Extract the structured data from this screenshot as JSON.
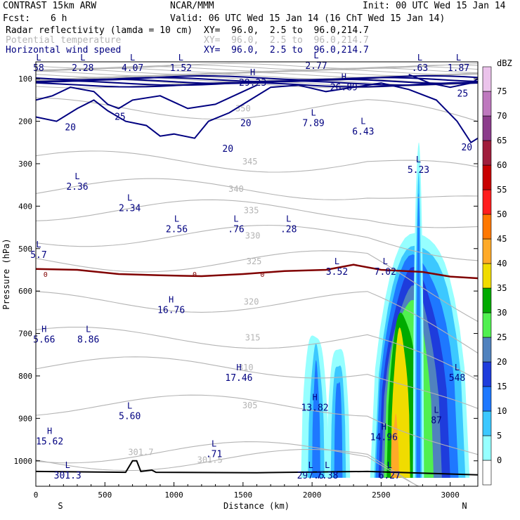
{
  "header": {
    "model": "CONTRAST 15km ARW",
    "center": "NCAR/MMM",
    "init": "Init: 00 UTC Wed 15 Jan 14",
    "fcst_label": "Fcst:",
    "fcst_value": "6 h",
    "valid": "Valid: 06 UTC Wed 15 Jan 14 (16 ChT Wed 15 Jan 14)"
  },
  "fields": [
    {
      "name": "Radar reflectivity (lamda = 10 cm)",
      "xy": "XY=  96.0,  2.5 to  96.0,214.7",
      "color": "#000000"
    },
    {
      "name": "Potential temperature",
      "xy": "XY=  96.0,  2.5 to  96.0,214.7",
      "color": "#b4b4b4"
    },
    {
      "name": "Horizontal wind speed",
      "xy": "XY=  96.0,  2.5 to  96.0,214.7",
      "color": "#000080"
    }
  ],
  "chart_data": {
    "type": "cross-section",
    "xlabel": "Distance (km)",
    "ylabel": "Pressure (hPa)",
    "xlim": [
      0,
      3200
    ],
    "ylim": [
      1060,
      60
    ],
    "x_ticks": [
      "0",
      "500",
      "1000",
      "1500",
      "2000",
      "2500",
      "3000"
    ],
    "x_tick_values": [
      0,
      500,
      1000,
      1500,
      2000,
      2500,
      3000
    ],
    "y_ticks": [
      "100",
      "200",
      "300",
      "400",
      "500",
      "600",
      "700",
      "800",
      "900",
      "1000"
    ],
    "y_tick_values": [
      100,
      200,
      300,
      400,
      500,
      600,
      700,
      800,
      900,
      1000
    ],
    "left_end_label": "S",
    "right_end_label": "N",
    "colorbar": {
      "unit": "dBZ",
      "levels": [
        "0",
        "5",
        "10",
        "15",
        "20",
        "25",
        "30",
        "35",
        "40",
        "45",
        "50",
        "55",
        "60",
        "65",
        "70",
        "75"
      ],
      "colors": [
        "#ffffff",
        "#96ffff",
        "#3cc8ff",
        "#1e78ff",
        "#1e3cdc",
        "#5082be",
        "#50f050",
        "#00aa00",
        "#f0dc00",
        "#ffaa28",
        "#ff7800",
        "#ff1e1e",
        "#c80000",
        "#a01e3c",
        "#8c3c8c",
        "#be78be",
        "#ebc3eb"
      ]
    },
    "theta_contours": [
      {
        "value": 301.5,
        "label": "301.5",
        "x": 1260,
        "p": 998
      },
      {
        "value": 301.7,
        "label": "301.7",
        "x": 760,
        "p": 980
      },
      {
        "value": 305,
        "label": "305",
        "x": 1550,
        "p": 870
      },
      {
        "value": 310,
        "label": "310",
        "x": 1520,
        "p": 780
      },
      {
        "value": 315,
        "label": "315",
        "x": 1570,
        "p": 710
      },
      {
        "value": 320,
        "label": "320",
        "x": 1560,
        "p": 625
      },
      {
        "value": 325,
        "label": "325",
        "x": 1580,
        "p": 530
      },
      {
        "value": 330,
        "label": "330",
        "x": 1570,
        "p": 470
      },
      {
        "value": 335,
        "label": "335",
        "x": 1560,
        "p": 410
      },
      {
        "value": 340,
        "label": "340",
        "x": 1450,
        "p": 360
      },
      {
        "value": 345,
        "label": "345",
        "x": 1550,
        "p": 295
      },
      {
        "value": 350,
        "label": "350",
        "x": 1500,
        "p": 170
      }
    ],
    "zero_isotherm": {
      "label": "0",
      "points": [
        [
          0,
          548
        ],
        [
          300,
          550
        ],
        [
          600,
          560
        ],
        [
          900,
          563
        ],
        [
          1200,
          565
        ],
        [
          1500,
          560
        ],
        [
          1800,
          553
        ],
        [
          2100,
          550
        ],
        [
          2300,
          538
        ],
        [
          2500,
          550
        ],
        [
          2800,
          555
        ],
        [
          3000,
          566
        ],
        [
          3200,
          570
        ]
      ]
    },
    "wind_contours": [
      {
        "value": 20,
        "label": "20"
      },
      {
        "value": 25,
        "label": "25"
      }
    ],
    "extrema": [
      {
        "type": "L",
        "value": "2.36",
        "x": 300,
        "p": 360
      },
      {
        "type": "L",
        "value": "2.34",
        "x": 680,
        "p": 410
      },
      {
        "type": "L",
        "value": "2.56",
        "x": 1020,
        "p": 460
      },
      {
        "type": "L",
        "value": ".76",
        "x": 1450,
        "p": 460
      },
      {
        "type": "L",
        "value": ".28",
        "x": 1830,
        "p": 460
      },
      {
        "type": "L",
        "value": "3.52",
        "x": 2180,
        "p": 560
      },
      {
        "type": "L",
        "value": "7.02",
        "x": 2530,
        "p": 560
      },
      {
        "type": "L",
        "value": "5.23",
        "x": 2770,
        "p": 320
      },
      {
        "type": "L",
        "value": "7.89",
        "x": 2010,
        "p": 210
      },
      {
        "type": "L",
        "value": "6.43",
        "x": 2370,
        "p": 230
      },
      {
        "type": "H",
        "value": "29.23",
        "x": 1570,
        "p": 115
      },
      {
        "type": "H",
        "value": "26.89",
        "x": 2230,
        "p": 125
      },
      {
        "type": "H",
        "value": "16.76",
        "x": 980,
        "p": 650
      },
      {
        "type": "H",
        "value": "5.66",
        "x": 60,
        "p": 720
      },
      {
        "type": "L",
        "value": "8.86",
        "x": 380,
        "p": 720
      },
      {
        "type": "H",
        "value": "17.46",
        "x": 1470,
        "p": 810
      },
      {
        "type": "H",
        "value": "13.82",
        "x": 2020,
        "p": 880
      },
      {
        "type": "L",
        "value": "5.60",
        "x": 680,
        "p": 900
      },
      {
        "type": "H",
        "value": "14.96",
        "x": 2520,
        "p": 950
      },
      {
        "type": "L",
        "value": "87",
        "x": 2900,
        "p": 910
      },
      {
        "type": "L",
        "value": "548",
        "x": 3050,
        "p": 810
      },
      {
        "type": "H",
        "value": "15.62",
        "x": 100,
        "p": 960
      },
      {
        "type": "L",
        "value": ".71",
        "x": 1290,
        "p": 990
      },
      {
        "type": "L",
        "value": "6.27",
        "x": 2560,
        "p": 1040
      },
      {
        "type": "L",
        "value": "2.28",
        "x": 340,
        "p": 80
      },
      {
        "type": "L",
        "value": "4.07",
        "x": 700,
        "p": 80
      },
      {
        "type": "L",
        "value": "1.52",
        "x": 1050,
        "p": 80
      },
      {
        "type": "L",
        "value": "2.77",
        "x": 2030,
        "p": 75
      },
      {
        "type": "L",
        "value": ".63",
        "x": 2780,
        "p": 80
      },
      {
        "type": "L",
        "value": "1.87",
        "x": 3060,
        "p": 80
      },
      {
        "type": "L",
        "value": "58",
        "x": 20,
        "p": 80
      },
      {
        "type": "L",
        "value": "5.7",
        "x": 20,
        "p": 520
      },
      {
        "type": "L",
        "value": "301.3",
        "x": 230,
        "p": 1040
      },
      {
        "type": "L",
        "value": "297.5",
        "x": 1990,
        "p": 1040
      },
      {
        "type": "L",
        "value": "7.38",
        "x": 2110,
        "p": 1040
      }
    ]
  }
}
